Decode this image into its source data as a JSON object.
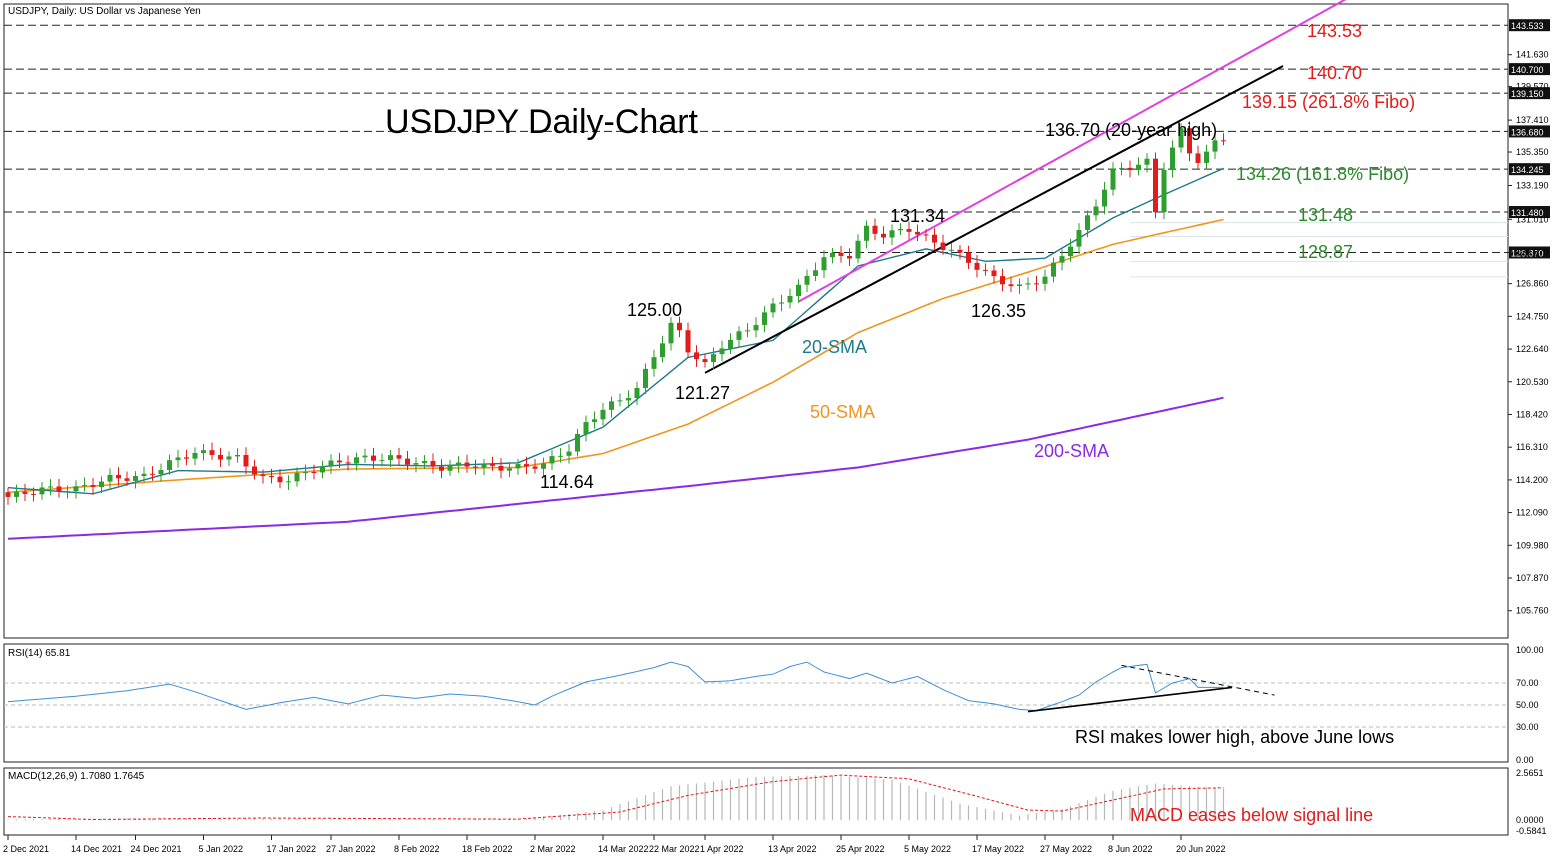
{
  "header": {
    "instrument_label": "USDJPY, Daily:  US Dollar vs Japanese Yen",
    "big_title": "USDJPY Daily-Chart"
  },
  "colors": {
    "bull": "#2e9e2e",
    "bear": "#e21b1b",
    "sma20": "#1f7a8c",
    "sma50": "#f0961e",
    "sma200": "#8a2be2",
    "channel": "#e040e0",
    "trend": "#000000",
    "rsi": "#3d8fd6",
    "red_text": "#e21b1b",
    "green_text": "#2a8a2a"
  },
  "price_axis": {
    "ticks": [
      "141.630",
      "139.570",
      "137.410",
      "135.350",
      "133.190",
      "131.010",
      "128.870",
      "126.860",
      "124.750",
      "122.640",
      "120.530",
      "118.420",
      "116.310",
      "114.200",
      "112.090",
      "109.980",
      "107.870",
      "105.760"
    ],
    "tick_values": [
      141.63,
      139.57,
      137.41,
      135.35,
      133.19,
      131.01,
      128.87,
      126.86,
      124.75,
      122.64,
      120.53,
      118.42,
      116.31,
      114.2,
      112.09,
      109.98,
      107.87,
      105.76
    ],
    "range": [
      104.0,
      144.9
    ],
    "level_boxes": [
      {
        "label": "143.533",
        "value": 143.533
      },
      {
        "label": "140.700",
        "value": 140.7
      },
      {
        "label": "139.150",
        "value": 139.15
      },
      {
        "label": "136.680",
        "value": 136.68
      },
      {
        "label": "134.245",
        "value": 134.245
      },
      {
        "label": "131.480",
        "value": 131.48
      },
      {
        "label": "128.870",
        "value": 128.87
      }
    ]
  },
  "date_axis": {
    "labels": [
      "2 Dec 2021",
      "14 Dec 2021",
      "24 Dec 2021",
      "5 Jan 2022",
      "17 Jan 2022",
      "27 Jan 2022",
      "8 Feb 2022",
      "18 Feb 2022",
      "2 Mar 2022",
      "14 Mar 2022",
      "22 Mar 2022",
      "1 Apr 2022",
      "13 Apr 2022",
      "25 Apr 2022",
      "5 May 2022",
      "17 May 2022",
      "27 May 2022",
      "8 Jun 2022",
      "20 Jun 2022"
    ],
    "label_index": [
      0,
      8,
      15,
      23,
      31,
      38,
      46,
      54,
      62,
      70,
      76,
      82,
      90,
      98,
      106,
      114,
      122,
      130,
      138
    ]
  },
  "annotations": {
    "level_143": "143.53",
    "level_140": "140.70",
    "level_139": "139.15 (261.8% Fibo)",
    "level_136": "136.70 (20-year high)",
    "level_134": "134.26 (161.8% Fibo)",
    "level_131": "131.48",
    "level_128": "128.87",
    "peak_131": "131.34",
    "peak_125": "125.00",
    "low_121": "121.27",
    "low_126": "126.35",
    "low_114": "114.64",
    "sma20": "20-SMA",
    "sma50": "50-SMA",
    "sma200": "200-SMA"
  },
  "rsi_panel": {
    "label": "RSI(14) 65.81",
    "ticks": [
      "100.00",
      "70.00",
      "50.00",
      "30.00",
      "0.00"
    ],
    "tick_values": [
      100,
      70,
      50,
      30,
      0
    ],
    "note": "RSI makes lower high, above June lows"
  },
  "macd_panel": {
    "label": "MACD(12,26,9) 1.7080 1.7645",
    "ticks": [
      "2.5651",
      "0.0000",
      "-0.5841"
    ],
    "tick_values": [
      2.5651,
      0.0,
      -0.5841
    ],
    "note": "MACD eases below signal line"
  },
  "chart_data": {
    "type": "candlestick",
    "title": "USDJPY Daily-Chart",
    "period": "Daily",
    "x_start": "2 Dec 2021",
    "x_end": "24 Jun 2022",
    "close_anchors": [
      [
        0,
        113.1
      ],
      [
        4,
        113.6
      ],
      [
        8,
        113.6
      ],
      [
        12,
        114.3
      ],
      [
        16,
        114.4
      ],
      [
        19,
        115.3
      ],
      [
        22,
        116.0
      ],
      [
        24,
        115.8
      ],
      [
        27,
        115.6
      ],
      [
        30,
        114.3
      ],
      [
        33,
        114.2
      ],
      [
        36,
        114.9
      ],
      [
        39,
        115.4
      ],
      [
        42,
        115.6
      ],
      [
        45,
        115.6
      ],
      [
        48,
        115.3
      ],
      [
        51,
        115.0
      ],
      [
        54,
        115.2
      ],
      [
        57,
        115.0
      ],
      [
        60,
        115.0
      ],
      [
        63,
        115.2
      ],
      [
        66,
        116.2
      ],
      [
        68,
        117.8
      ],
      [
        70,
        118.8
      ],
      [
        72,
        119.3
      ],
      [
        74,
        120.1
      ],
      [
        76,
        122.2
      ],
      [
        78,
        124.2
      ],
      [
        79,
        123.7
      ],
      [
        80,
        122.6
      ],
      [
        82,
        121.6
      ],
      [
        84,
        122.9
      ],
      [
        87,
        123.9
      ],
      [
        90,
        125.4
      ],
      [
        93,
        126.6
      ],
      [
        96,
        128.6
      ],
      [
        99,
        128.7
      ],
      [
        101,
        130.4
      ],
      [
        103,
        130.0
      ],
      [
        106,
        130.4
      ],
      [
        109,
        129.5
      ],
      [
        111,
        129.0
      ],
      [
        113,
        128.3
      ],
      [
        116,
        127.2
      ],
      [
        119,
        126.6
      ],
      [
        122,
        127.3
      ],
      [
        124,
        128.7
      ],
      [
        126,
        130.2
      ],
      [
        128,
        132.0
      ],
      [
        130,
        134.1
      ],
      [
        132,
        134.4
      ],
      [
        134,
        134.7
      ],
      [
        135,
        131.5
      ],
      [
        136,
        134.4
      ],
      [
        138,
        136.7
      ],
      [
        139,
        135.4
      ],
      [
        140,
        134.8
      ],
      [
        141,
        135.2
      ],
      [
        142,
        136.0
      ],
      [
        143,
        136.3
      ]
    ],
    "sma20_anchors": [
      [
        0,
        113.7
      ],
      [
        10,
        113.3
      ],
      [
        20,
        114.8
      ],
      [
        30,
        114.7
      ],
      [
        40,
        115.2
      ],
      [
        50,
        115.1
      ],
      [
        60,
        115.3
      ],
      [
        70,
        117.6
      ],
      [
        80,
        122.1
      ],
      [
        90,
        123.2
      ],
      [
        100,
        128.0
      ],
      [
        108,
        129.1
      ],
      [
        115,
        128.3
      ],
      [
        122,
        128.5
      ],
      [
        130,
        131.1
      ],
      [
        136,
        132.6
      ],
      [
        143,
        134.3
      ]
    ],
    "sma50_anchors": [
      [
        0,
        113.4
      ],
      [
        20,
        114.2
      ],
      [
        40,
        114.9
      ],
      [
        60,
        115.0
      ],
      [
        70,
        115.9
      ],
      [
        80,
        117.8
      ],
      [
        90,
        120.5
      ],
      [
        100,
        123.7
      ],
      [
        110,
        125.9
      ],
      [
        120,
        127.6
      ],
      [
        130,
        129.4
      ],
      [
        143,
        131.0
      ]
    ],
    "sma200_anchors": [
      [
        0,
        110.4
      ],
      [
        40,
        111.5
      ],
      [
        80,
        113.8
      ],
      [
        100,
        115.0
      ],
      [
        120,
        116.8
      ],
      [
        143,
        119.5
      ]
    ],
    "channel_upper": [
      [
        93,
        125.7
      ],
      [
        160,
        146.0
      ]
    ],
    "trend_line": [
      [
        82,
        121.1
      ],
      [
        150,
        140.9
      ]
    ],
    "rsi_anchors": [
      [
        0,
        53
      ],
      [
        8,
        58
      ],
      [
        14,
        63
      ],
      [
        19,
        69
      ],
      [
        22,
        62
      ],
      [
        25,
        54
      ],
      [
        28,
        46
      ],
      [
        32,
        52
      ],
      [
        36,
        57
      ],
      [
        40,
        51
      ],
      [
        44,
        59
      ],
      [
        48,
        56
      ],
      [
        52,
        60
      ],
      [
        56,
        58
      ],
      [
        60,
        53
      ],
      [
        62,
        50
      ],
      [
        64,
        58
      ],
      [
        68,
        71
      ],
      [
        72,
        77
      ],
      [
        76,
        84
      ],
      [
        78,
        89
      ],
      [
        80,
        85
      ],
      [
        82,
        71
      ],
      [
        85,
        72
      ],
      [
        88,
        76
      ],
      [
        90,
        78
      ],
      [
        92,
        85
      ],
      [
        94,
        89
      ],
      [
        96,
        80
      ],
      [
        99,
        74
      ],
      [
        101,
        79
      ],
      [
        104,
        70
      ],
      [
        107,
        76
      ],
      [
        110,
        64
      ],
      [
        113,
        54
      ],
      [
        116,
        51
      ],
      [
        119,
        46
      ],
      [
        121,
        45
      ],
      [
        124,
        53
      ],
      [
        126,
        59
      ],
      [
        128,
        71
      ],
      [
        130,
        80
      ],
      [
        131,
        84
      ],
      [
        133,
        86
      ],
      [
        134,
        87
      ],
      [
        135,
        61
      ],
      [
        137,
        70
      ],
      [
        139,
        74
      ],
      [
        140,
        66
      ],
      [
        143,
        66
      ]
    ],
    "rsi_lines": {
      "support": [
        [
          120,
          44
        ],
        [
          144,
          66
        ]
      ],
      "resistance": [
        [
          131,
          86
        ],
        [
          149,
          59
        ]
      ]
    },
    "macd_anchors": [
      [
        0,
        0.05
      ],
      [
        20,
        0.12
      ],
      [
        40,
        0.06
      ],
      [
        60,
        0.04
      ],
      [
        70,
        0.55
      ],
      [
        78,
        1.85
      ],
      [
        88,
        2.35
      ],
      [
        96,
        2.45
      ],
      [
        104,
        2.2
      ],
      [
        112,
        0.9
      ],
      [
        119,
        0.25
      ],
      [
        124,
        0.6
      ],
      [
        130,
        1.6
      ],
      [
        135,
        2.0
      ],
      [
        143,
        1.71
      ]
    ],
    "signal_anchors": [
      [
        0,
        0.2
      ],
      [
        10,
        0.04
      ],
      [
        30,
        0.12
      ],
      [
        60,
        0.06
      ],
      [
        72,
        0.45
      ],
      [
        80,
        1.35
      ],
      [
        90,
        2.1
      ],
      [
        98,
        2.45
      ],
      [
        106,
        2.25
      ],
      [
        114,
        1.3
      ],
      [
        120,
        0.55
      ],
      [
        124,
        0.5
      ],
      [
        130,
        1.1
      ],
      [
        136,
        1.7
      ],
      [
        143,
        1.76
      ]
    ]
  }
}
